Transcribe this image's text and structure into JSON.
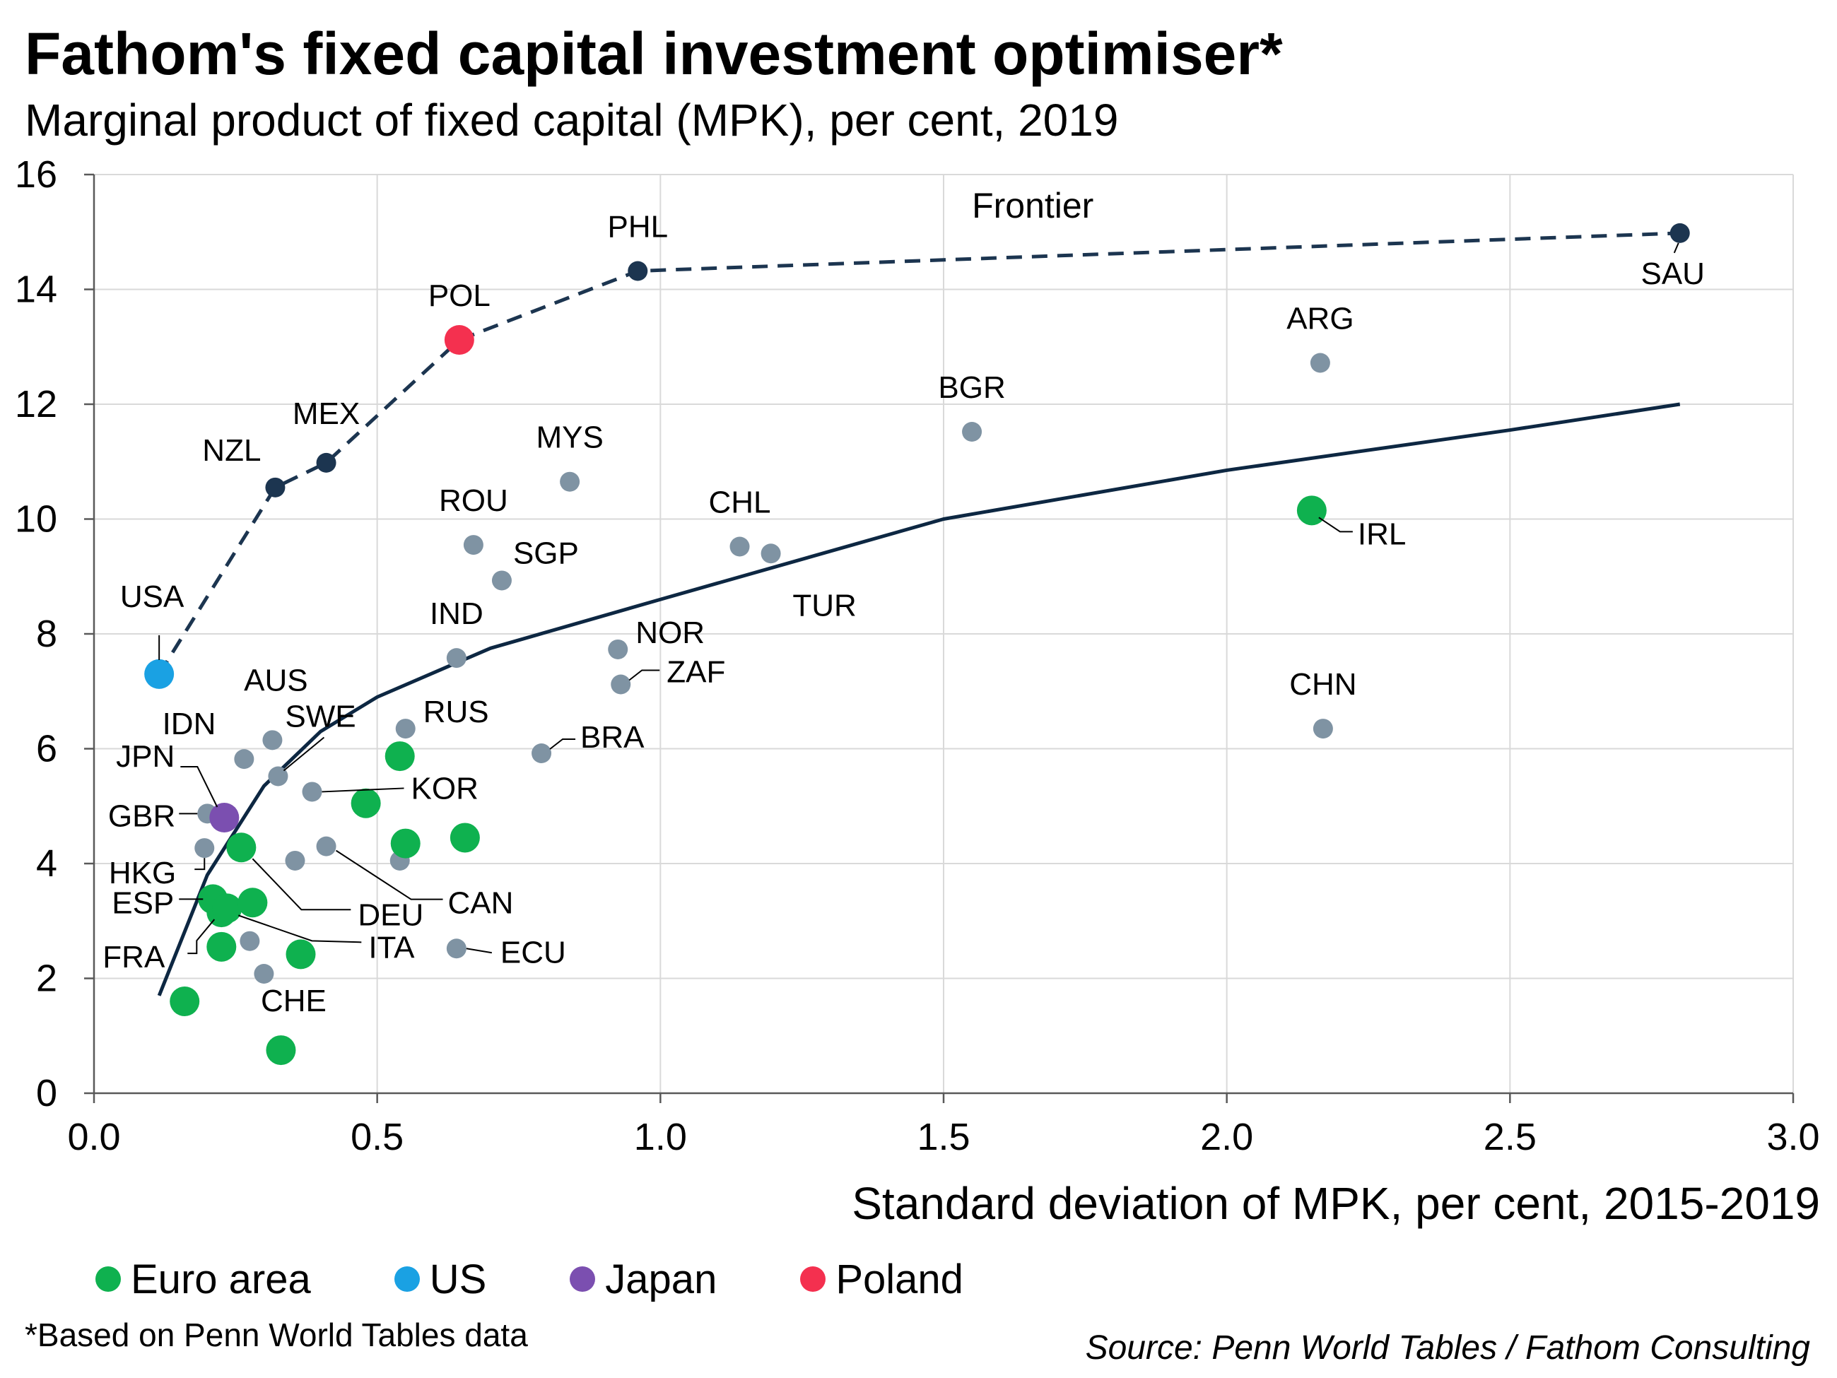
{
  "title": "Fathom's fixed capital investment optimiser*",
  "subtitle": "Marginal product of fixed capital (MPK), per cent, 2019",
  "footnote": "*Based on Penn World Tables data",
  "source": "Source: Penn World Tables / Fathom Consulting",
  "legend": [
    {
      "label": "Euro area",
      "color": "#0fb14f"
    },
    {
      "label": "US",
      "color": "#1aa1e3"
    },
    {
      "label": "Japan",
      "color": "#7b4fb0"
    },
    {
      "label": "Poland",
      "color": "#f4304f"
    }
  ],
  "chart_data": {
    "type": "scatter",
    "xlabel": "Standard deviation of MPK, per cent, 2015-2019",
    "ylabel": "",
    "xlim": [
      0,
      3.0
    ],
    "ylim": [
      0,
      16
    ],
    "x_ticks": [
      "0.0",
      "0.5",
      "1.0",
      "1.5",
      "2.0",
      "2.5",
      "3.0"
    ],
    "y_ticks": [
      "0",
      "2",
      "4",
      "6",
      "8",
      "10",
      "12",
      "14",
      "16"
    ],
    "grid": true,
    "legend_position": "bottom",
    "colors": {
      "other": "#7f93a3",
      "frontier": "#1c3550",
      "trend": "#0d2742"
    },
    "frontier_label": "Frontier",
    "points": [
      {
        "label": "USA",
        "x": 0.115,
        "y": 7.3,
        "group": "US"
      },
      {
        "label": "NZL",
        "x": 0.32,
        "y": 10.55,
        "group": "frontier"
      },
      {
        "label": "MEX",
        "x": 0.41,
        "y": 10.98,
        "group": "frontier"
      },
      {
        "label": "POL",
        "x": 0.645,
        "y": 13.12,
        "group": "Poland"
      },
      {
        "label": "PHL",
        "x": 0.96,
        "y": 14.32,
        "group": "frontier"
      },
      {
        "label": "SAU",
        "x": 2.8,
        "y": 14.98,
        "group": "frontier"
      },
      {
        "label": "ARG",
        "x": 2.165,
        "y": 12.72,
        "group": "other"
      },
      {
        "label": "BGR",
        "x": 1.55,
        "y": 11.52,
        "group": "other"
      },
      {
        "label": "MYS",
        "x": 0.84,
        "y": 10.65,
        "group": "other"
      },
      {
        "label": "ROU",
        "x": 0.67,
        "y": 9.55,
        "group": "other"
      },
      {
        "label": "SGP",
        "x": 0.72,
        "y": 8.93,
        "group": "other"
      },
      {
        "label": "CHL",
        "x": 1.14,
        "y": 9.52,
        "group": "other"
      },
      {
        "label": "TUR",
        "x": 1.195,
        "y": 9.4,
        "group": "other"
      },
      {
        "label": "IRL",
        "x": 2.15,
        "y": 10.15,
        "group": "Euro area"
      },
      {
        "label": "IND",
        "x": 0.64,
        "y": 7.58,
        "group": "other"
      },
      {
        "label": "NOR",
        "x": 0.925,
        "y": 7.73,
        "group": "other"
      },
      {
        "label": "ZAF",
        "x": 0.93,
        "y": 7.12,
        "group": "other"
      },
      {
        "label": "CHN",
        "x": 2.17,
        "y": 6.35,
        "group": "other"
      },
      {
        "label": "BRA",
        "x": 0.79,
        "y": 5.92,
        "group": "other"
      },
      {
        "label": "RUS",
        "x": 0.55,
        "y": 6.35,
        "group": "other"
      },
      {
        "label": "AUS",
        "x": 0.315,
        "y": 6.15,
        "group": "other"
      },
      {
        "label": "IDN",
        "x": 0.265,
        "y": 5.82,
        "group": "other"
      },
      {
        "label": "SWE",
        "x": 0.325,
        "y": 5.52,
        "group": "other"
      },
      {
        "label": "KOR",
        "x": 0.385,
        "y": 5.25,
        "group": "other"
      },
      {
        "label": "JPN",
        "x": 0.23,
        "y": 4.8,
        "group": "Japan"
      },
      {
        "label": "GBR",
        "x": 0.2,
        "y": 4.87,
        "group": "other"
      },
      {
        "label": "HKG",
        "x": 0.195,
        "y": 4.27,
        "group": "other"
      },
      {
        "label": "DEU",
        "x": 0.26,
        "y": 4.28,
        "group": "Euro area"
      },
      {
        "label": "CAN",
        "x": 0.41,
        "y": 4.3,
        "group": "other"
      },
      {
        "label": "ESP",
        "x": 0.21,
        "y": 3.38,
        "group": "Euro area"
      },
      {
        "label": "FRA",
        "x": 0.225,
        "y": 3.15,
        "group": "Euro area"
      },
      {
        "label": "ITA",
        "x": 0.235,
        "y": 3.22,
        "group": "Euro area"
      },
      {
        "label": "ECU",
        "x": 0.64,
        "y": 2.52,
        "group": "other"
      },
      {
        "label": "CHE",
        "x": 0.33,
        "y": 0.75,
        "group": "Euro area"
      },
      {
        "label": "",
        "x": 0.48,
        "y": 5.05,
        "group": "Euro area"
      },
      {
        "label": "",
        "x": 0.54,
        "y": 5.87,
        "group": "Euro area"
      },
      {
        "label": "",
        "x": 0.55,
        "y": 4.35,
        "group": "Euro area"
      },
      {
        "label": "",
        "x": 0.655,
        "y": 4.45,
        "group": "Euro area"
      },
      {
        "label": "",
        "x": 0.28,
        "y": 3.32,
        "group": "Euro area"
      },
      {
        "label": "",
        "x": 0.225,
        "y": 2.55,
        "group": "Euro area"
      },
      {
        "label": "",
        "x": 0.365,
        "y": 2.42,
        "group": "Euro area"
      },
      {
        "label": "",
        "x": 0.16,
        "y": 1.6,
        "group": "Euro area"
      },
      {
        "label": "",
        "x": 0.355,
        "y": 4.05,
        "group": "other"
      },
      {
        "label": "",
        "x": 0.54,
        "y": 4.05,
        "group": "other"
      },
      {
        "label": "",
        "x": 0.275,
        "y": 2.65,
        "group": "other"
      },
      {
        "label": "",
        "x": 0.3,
        "y": 2.08,
        "group": "other"
      }
    ],
    "frontier_series": {
      "x": [
        0.115,
        0.32,
        0.41,
        0.645,
        0.96,
        2.8
      ],
      "y": [
        7.3,
        10.55,
        10.98,
        13.12,
        14.32,
        14.98
      ]
    },
    "trend_series": {
      "x": [
        0.115,
        0.2,
        0.3,
        0.4,
        0.5,
        0.7,
        1.0,
        1.5,
        2.0,
        2.5,
        2.8
      ],
      "y": [
        1.7,
        3.8,
        5.35,
        6.3,
        6.9,
        7.75,
        8.6,
        10.0,
        10.85,
        11.55,
        12.0
      ]
    }
  }
}
